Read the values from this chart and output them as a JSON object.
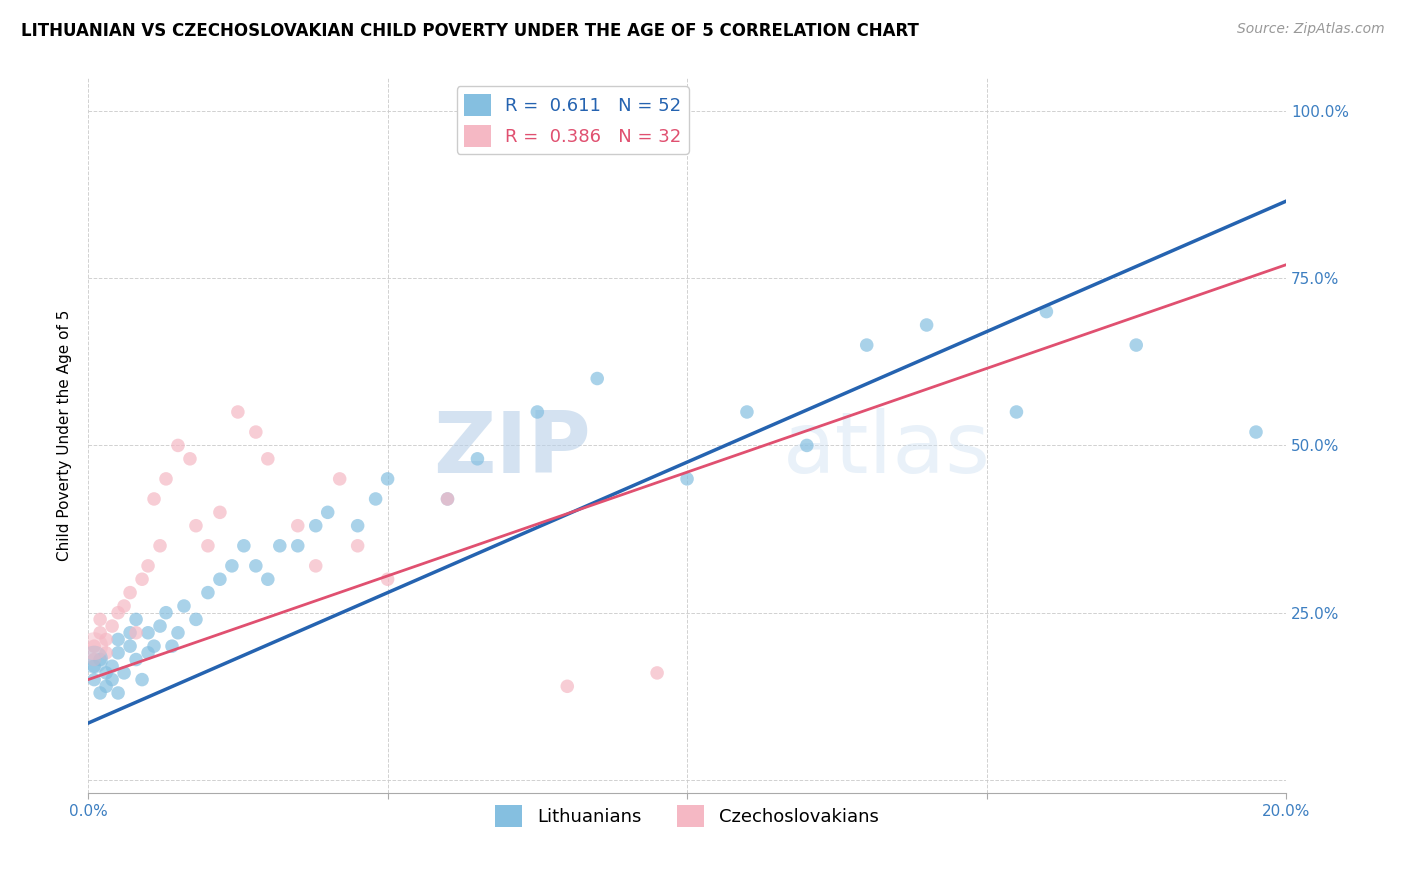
{
  "title": "LITHUANIAN VS CZECHOSLOVAKIAN CHILD POVERTY UNDER THE AGE OF 5 CORRELATION CHART",
  "source": "Source: ZipAtlas.com",
  "ylabel": "Child Poverty Under the Age of 5",
  "xlim": [
    0.0,
    0.2
  ],
  "ylim": [
    -0.02,
    1.05
  ],
  "blue_color": "#85bfe0",
  "pink_color": "#f5b8c4",
  "blue_line_color": "#2563b0",
  "pink_line_color": "#e05070",
  "r_blue": "0.611",
  "n_blue": "52",
  "r_pink": "0.386",
  "n_pink": "32",
  "legend_blue": "Lithuanians",
  "legend_pink": "Czechoslovakians",
  "blue_intercept": 0.085,
  "blue_slope": 3.9,
  "pink_intercept": 0.15,
  "pink_slope": 3.1,
  "blue_scatter_x": [
    0.001,
    0.001,
    0.002,
    0.002,
    0.003,
    0.003,
    0.004,
    0.004,
    0.005,
    0.005,
    0.005,
    0.006,
    0.007,
    0.007,
    0.008,
    0.008,
    0.009,
    0.01,
    0.01,
    0.011,
    0.012,
    0.013,
    0.014,
    0.015,
    0.016,
    0.018,
    0.02,
    0.022,
    0.024,
    0.026,
    0.028,
    0.03,
    0.032,
    0.035,
    0.038,
    0.04,
    0.045,
    0.048,
    0.05,
    0.06,
    0.065,
    0.075,
    0.085,
    0.1,
    0.11,
    0.12,
    0.13,
    0.14,
    0.155,
    0.16,
    0.175,
    0.195
  ],
  "blue_scatter_y": [
    0.15,
    0.17,
    0.13,
    0.18,
    0.16,
    0.14,
    0.15,
    0.17,
    0.13,
    0.19,
    0.21,
    0.16,
    0.2,
    0.22,
    0.18,
    0.24,
    0.15,
    0.19,
    0.22,
    0.2,
    0.23,
    0.25,
    0.2,
    0.22,
    0.26,
    0.24,
    0.28,
    0.3,
    0.32,
    0.35,
    0.32,
    0.3,
    0.35,
    0.35,
    0.38,
    0.4,
    0.38,
    0.42,
    0.45,
    0.42,
    0.48,
    0.55,
    0.6,
    0.45,
    0.55,
    0.5,
    0.65,
    0.68,
    0.55,
    0.7,
    0.65,
    0.52
  ],
  "blue_scatter_sizes": [
    90,
    90,
    90,
    90,
    90,
    90,
    90,
    90,
    90,
    90,
    90,
    90,
    90,
    90,
    90,
    90,
    90,
    90,
    90,
    90,
    90,
    90,
    90,
    90,
    90,
    90,
    90,
    90,
    90,
    90,
    90,
    90,
    90,
    90,
    90,
    90,
    90,
    90,
    90,
    90,
    90,
    90,
    90,
    90,
    90,
    90,
    90,
    90,
    90,
    90,
    90,
    90
  ],
  "blue_big_x": [
    0.001
  ],
  "blue_big_y": [
    0.18
  ],
  "pink_scatter_x": [
    0.001,
    0.001,
    0.002,
    0.002,
    0.003,
    0.003,
    0.004,
    0.005,
    0.006,
    0.007,
    0.008,
    0.009,
    0.01,
    0.011,
    0.012,
    0.013,
    0.015,
    0.017,
    0.018,
    0.02,
    0.022,
    0.025,
    0.028,
    0.03,
    0.035,
    0.038,
    0.042,
    0.045,
    0.05,
    0.06,
    0.08,
    0.095
  ],
  "pink_scatter_y": [
    0.18,
    0.2,
    0.22,
    0.24,
    0.19,
    0.21,
    0.23,
    0.25,
    0.26,
    0.28,
    0.22,
    0.3,
    0.32,
    0.42,
    0.35,
    0.45,
    0.5,
    0.48,
    0.38,
    0.35,
    0.4,
    0.55,
    0.52,
    0.48,
    0.38,
    0.32,
    0.45,
    0.35,
    0.3,
    0.42,
    0.14,
    0.16
  ],
  "pink_big_x": [
    0.001
  ],
  "pink_big_y": [
    0.2
  ],
  "watermark_zip": "ZIP",
  "watermark_atlas": "atlas",
  "title_fontsize": 12,
  "axis_label_fontsize": 11,
  "tick_fontsize": 11,
  "legend_fontsize": 13,
  "source_fontsize": 10
}
